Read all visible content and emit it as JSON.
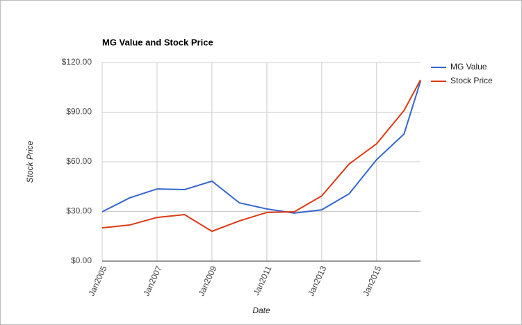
{
  "chart_data": {
    "type": "line",
    "title": "MG Value and Stock Price",
    "x_label": "Date",
    "y_label": "Stock Price",
    "x": [
      2005,
      2006,
      2007,
      2008,
      2009,
      2010,
      2011,
      2012,
      2013,
      2014,
      2015,
      2016,
      2016.6
    ],
    "series": [
      {
        "name": "MG Value",
        "color": "#3366cc",
        "values": [
          29.8,
          38.2,
          43.6,
          43.2,
          48.3,
          35.2,
          31.5,
          29,
          31,
          40.7,
          61.3,
          76.8,
          108.7
        ]
      },
      {
        "name": "Stock Price",
        "color": "#dc3912",
        "values": [
          20.1,
          21.8,
          26.4,
          28.1,
          18,
          24.3,
          29.4,
          29.8,
          39.4,
          58.7,
          70.9,
          91,
          109.5
        ]
      }
    ],
    "xlim": [
      2005,
      2016.6
    ],
    "xticks": [
      {
        "value": 2005,
        "label": "Jan2005"
      },
      {
        "value": 2007,
        "label": "Jan2007"
      },
      {
        "value": 2009,
        "label": "Jan2009"
      },
      {
        "value": 2011,
        "label": "Jan2011"
      },
      {
        "value": 2013,
        "label": "Jan2013"
      },
      {
        "value": 2015,
        "label": "Jan2015"
      }
    ],
    "ylim": [
      0,
      120
    ],
    "yticks": [
      {
        "value": 0,
        "label": "$0.00"
      },
      {
        "value": 30,
        "label": "$30.00"
      },
      {
        "value": 60,
        "label": "$60.00"
      },
      {
        "value": 90,
        "label": "$90.00"
      },
      {
        "value": 120,
        "label": "$120.00"
      }
    ],
    "grid": true,
    "legend": "right"
  }
}
